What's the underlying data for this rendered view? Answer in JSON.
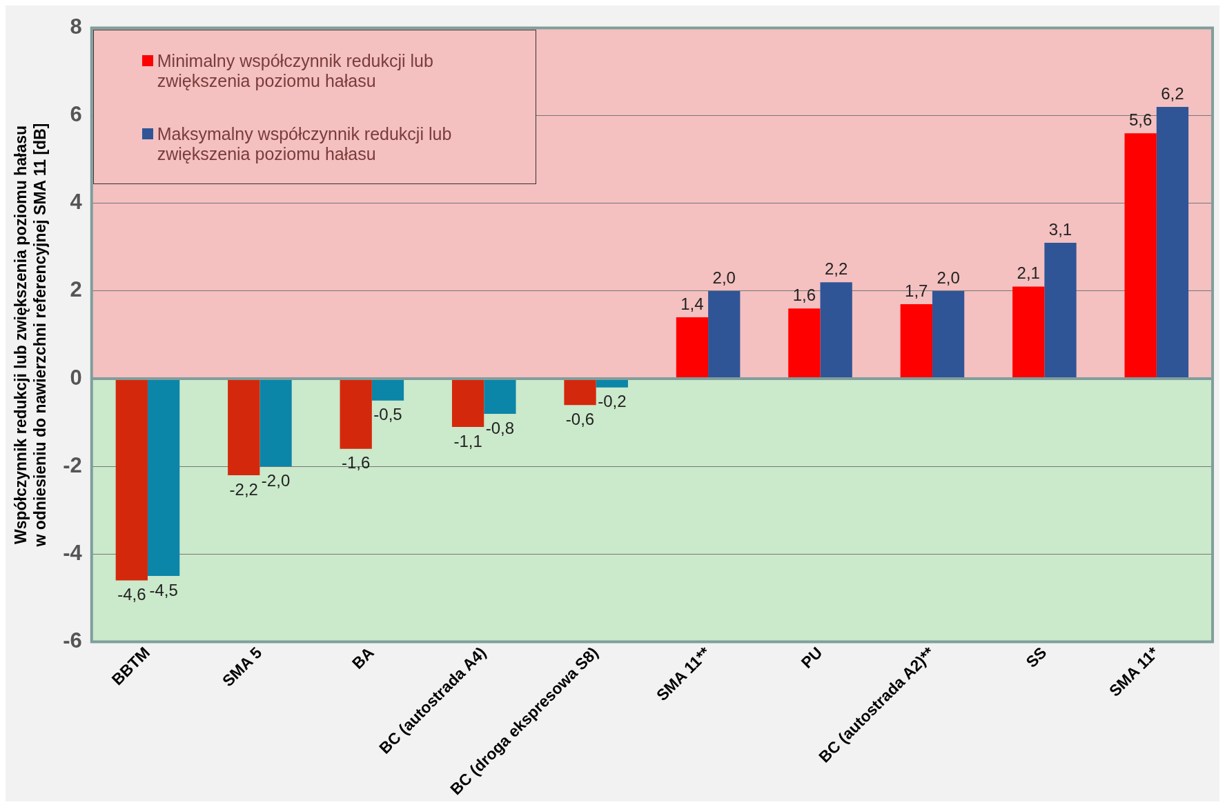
{
  "chart_data": {
    "type": "bar",
    "ylabel": "Współczynnik redukcji lub zwiększenia poziomu hałasu w odniesieniu do nawierzchni referencyjnej SMA 11 [dB]",
    "categories": [
      "BBTM",
      "SMA 5",
      "BA",
      "BC (autostrada A4)",
      "BC (droga ekspresowa S8)",
      "SMA 11**",
      "PU",
      "BC (autostrada A2)**",
      "SS",
      "SMA 11*"
    ],
    "series": [
      {
        "name": "Minimalny współczynnik redukcji lub zwiększenia poziomu hałasu",
        "color": "#ff0000",
        "colors": [
          "#d4280c",
          "#d4280c",
          "#d4280c",
          "#d4280c",
          "#d4280c",
          "#ff0000",
          "#ff0000",
          "#ff0000",
          "#ff0000",
          "#ff0000"
        ],
        "values": [
          -4.6,
          -2.2,
          -1.6,
          -1.1,
          -0.6,
          1.4,
          1.6,
          1.7,
          2.1,
          5.6
        ],
        "value_labels": [
          "-4,6",
          "-2,2",
          "-1,6",
          "-1,1",
          "-0,6",
          "1,4",
          "1,6",
          "1,7",
          "2,1",
          "5,6"
        ]
      },
      {
        "name": "Maksymalny współczynnik redukcji lub zwiększenia poziomu hałasu",
        "color": "#2f5597",
        "colors": [
          "#0b85a8",
          "#0b85a8",
          "#0b85a8",
          "#0b85a8",
          "#0b85a8",
          "#2f5597",
          "#2f5597",
          "#2f5597",
          "#2f5597",
          "#2f5597"
        ],
        "values": [
          -4.5,
          -2.0,
          -0.5,
          -0.8,
          -0.2,
          2.0,
          2.2,
          2.0,
          3.1,
          6.2
        ],
        "value_labels": [
          "-4,5",
          "-2,0",
          "-0,5",
          "-0,8",
          "-0,2",
          "2,0",
          "2,2",
          "2,0",
          "3,1",
          "6,2"
        ]
      }
    ],
    "ylim": [
      -6,
      8
    ],
    "yticks": [
      -6,
      -4,
      -2,
      0,
      2,
      4,
      6,
      8
    ],
    "grid": "y",
    "legend": "top left",
    "bands": [
      {
        "axis": "y",
        "from": 0,
        "to": 8,
        "color": "#f4c0c0"
      },
      {
        "axis": "y",
        "from": -6,
        "to": 0,
        "color": "#cbe9cb"
      }
    ],
    "ref_lines": [
      {
        "axis": "y",
        "value": 0,
        "color": "#7f9e9c"
      }
    ]
  }
}
